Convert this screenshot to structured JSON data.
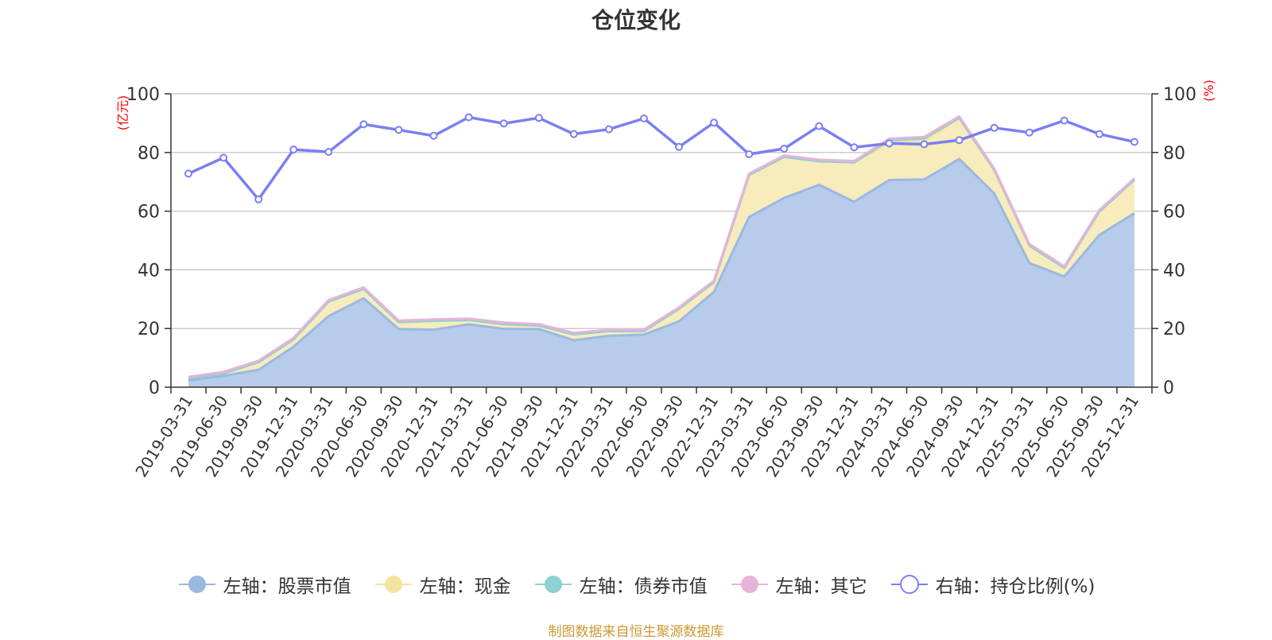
{
  "chart_data": {
    "type": "area",
    "title": "仓位变化",
    "x": [
      "2019-03-31",
      "2019-06-30",
      "2019-09-30",
      "2019-12-31",
      "2020-03-31",
      "2020-06-30",
      "2020-09-30",
      "2020-12-31",
      "2021-03-31",
      "2021-06-30",
      "2021-09-30",
      "2021-12-31",
      "2022-03-31",
      "2022-06-30",
      "2022-09-30",
      "2022-12-31",
      "2023-03-31",
      "2023-06-30",
      "2023-09-30",
      "2023-12-31",
      "2024-03-31",
      "2024-06-30",
      "2024-09-30",
      "2024-12-31",
      "2025-03-31",
      "2025-06-30",
      "2025-09-30",
      "2025-12-31"
    ],
    "left_axis": {
      "unit_label": "(亿元)",
      "ylim": [
        0,
        100
      ],
      "ticks": [
        0,
        20,
        40,
        60,
        80,
        100
      ]
    },
    "right_axis": {
      "unit_label": "(%)",
      "ylim": [
        0,
        100
      ],
      "ticks": [
        0,
        20,
        40,
        60,
        80,
        100
      ]
    },
    "grid": true,
    "legend_position": "bottom",
    "stacked_series": [
      {
        "name": "左轴：股票市值",
        "color": "#9bb8e0",
        "fill": "#b7cceb",
        "values": [
          2.3,
          3.9,
          5.9,
          13.8,
          24.2,
          30.3,
          19.8,
          19.6,
          21.4,
          19.9,
          19.8,
          16.0,
          17.5,
          17.9,
          22.4,
          32.5,
          58.0,
          64.5,
          69.0,
          63.2,
          70.6,
          70.8,
          77.8,
          66.0,
          42.3,
          37.7,
          51.9,
          59.3
        ]
      },
      {
        "name": "左轴：现金",
        "color": "#f5e3a0",
        "fill": "#f8ecbc",
        "values": [
          0.8,
          0.8,
          2.6,
          2.5,
          5.0,
          3.2,
          2.4,
          3.0,
          1.5,
          1.6,
          1.2,
          2.0,
          1.6,
          1.2,
          4.3,
          3.3,
          14.3,
          14.0,
          8.0,
          13.4,
          12.6,
          13.0,
          14.0,
          8.0,
          6.0,
          3.0,
          8.0,
          11.4
        ]
      },
      {
        "name": "左轴：债券市值",
        "color": "#8fd0d0",
        "fill": "#bfe6e6",
        "values": [
          0,
          0,
          0,
          0,
          0,
          0,
          0,
          0,
          0,
          0,
          0,
          0,
          0,
          0,
          0,
          0,
          0,
          0,
          0,
          0,
          1.0,
          1.0,
          0,
          0,
          0,
          0,
          0,
          0
        ]
      },
      {
        "name": "左轴：其它",
        "color": "#e8b3d8",
        "fill": "#f2d2e8",
        "values": [
          0.4,
          0.5,
          0.5,
          0.5,
          0.5,
          0.5,
          0.5,
          0.5,
          0.5,
          0.5,
          0.5,
          0.5,
          0.5,
          0.5,
          0.5,
          0.5,
          0.5,
          0.5,
          0.5,
          0.5,
          0.5,
          0.5,
          0.5,
          0.5,
          0.5,
          0.5,
          0.5,
          0.5
        ]
      }
    ],
    "line_series": {
      "name": "右轴：持仓比例(%)",
      "color": "#7b7ff2",
      "values": [
        72.8,
        78.2,
        64.0,
        81.0,
        80.2,
        89.6,
        87.7,
        85.7,
        92.0,
        89.9,
        91.8,
        86.3,
        87.9,
        91.6,
        81.9,
        90.2,
        79.4,
        81.3,
        89.0,
        81.8,
        83.1,
        82.8,
        84.2,
        88.4,
        86.8,
        90.9,
        86.3,
        83.6
      ]
    }
  },
  "legend_items": [
    {
      "label": "左轴：股票市值",
      "color": "#9bb8e0",
      "marker": "filled"
    },
    {
      "label": "左轴：现金",
      "color": "#f5e3a0",
      "marker": "filled"
    },
    {
      "label": "左轴：债券市值",
      "color": "#8fd0d0",
      "marker": "filled"
    },
    {
      "label": "左轴：其它",
      "color": "#e8b3d8",
      "marker": "filled"
    },
    {
      "label": "右轴：持仓比例(%)",
      "color": "#7b7ff2",
      "marker": "hollow"
    }
  ],
  "source_note": "制图数据来自恒生聚源数据库"
}
